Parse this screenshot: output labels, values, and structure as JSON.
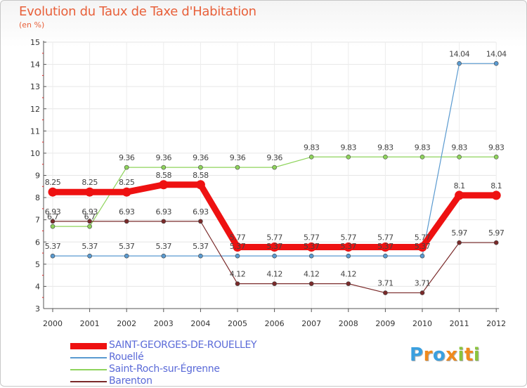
{
  "chart_data": {
    "type": "line",
    "title": "Evolution du Taux de Taxe d'Habitation",
    "subtitle": "(en %)",
    "categories": [
      "2000",
      "2001",
      "2002",
      "2003",
      "2004",
      "2005",
      "2006",
      "2007",
      "2008",
      "2009",
      "2010",
      "2011",
      "2012"
    ],
    "ylim": [
      3,
      15
    ],
    "yticks": [
      "3",
      "4",
      "5",
      "6",
      "7",
      "8",
      "9",
      "10",
      "11",
      "12",
      "13",
      "14",
      "15"
    ],
    "series": [
      {
        "name": "Saint-Roch-sur-Égrenne",
        "color": "#8fd45c",
        "values": [
          6.7,
          6.7,
          9.36,
          9.36,
          9.36,
          9.36,
          9.36,
          9.83,
          9.83,
          9.83,
          9.83,
          9.83,
          9.83
        ],
        "labels": [
          "6.7",
          "6.7",
          "9.36",
          "9.36",
          "9.36",
          "9.36",
          "9.36",
          "9.83",
          "9.83",
          "9.83",
          "9.83",
          "9.83",
          "9.83"
        ]
      },
      {
        "name": "Rouellé",
        "color": "#5a9ad0",
        "values": [
          5.37,
          5.37,
          5.37,
          5.37,
          5.37,
          5.37,
          5.37,
          5.37,
          5.37,
          5.37,
          5.37,
          14.04,
          14.04
        ],
        "labels": [
          "5.37",
          "5.37",
          "5.37",
          "5.37",
          "5.37",
          "5.37",
          "5.37",
          "5.37",
          "5.37",
          "5.37",
          "5.37",
          "14.04",
          "14.04"
        ]
      },
      {
        "name": "Barenton",
        "color": "#7a2a2a",
        "values": [
          6.93,
          6.93,
          6.93,
          6.93,
          6.93,
          4.12,
          4.12,
          4.12,
          4.12,
          3.71,
          3.71,
          5.97,
          5.97
        ],
        "labels": [
          "6.93",
          "6.93",
          "6.93",
          "6.93",
          "6.93",
          "4.12",
          "4.12",
          "4.12",
          "4.12",
          "3.71",
          "3.71",
          "5.97",
          "5.97"
        ]
      },
      {
        "name": "SAINT-GEORGES-DE-ROUELLEY",
        "color": "#ee1111",
        "values": [
          8.25,
          8.25,
          8.25,
          8.58,
          8.58,
          5.77,
          5.77,
          5.77,
          5.77,
          5.77,
          5.77,
          8.1,
          8.1
        ],
        "labels": [
          "8.25",
          "8.25",
          "8.25",
          "8.58",
          "8.58",
          "5.77",
          "5.77",
          "5.77",
          "5.77",
          "5.77",
          "5.77",
          "8.1",
          "8.1"
        ]
      }
    ]
  },
  "legend": {
    "items": [
      {
        "label": "SAINT-GEORGES-DE-ROUELLEY",
        "color": "#ee1111"
      },
      {
        "label": "Rouellé",
        "color": "#5a9ad0"
      },
      {
        "label": "Saint-Roch-sur-Égrenne",
        "color": "#8fd45c"
      },
      {
        "label": "Barenton",
        "color": "#7a2a2a"
      }
    ]
  },
  "logo": {
    "text": "Proxiti"
  }
}
